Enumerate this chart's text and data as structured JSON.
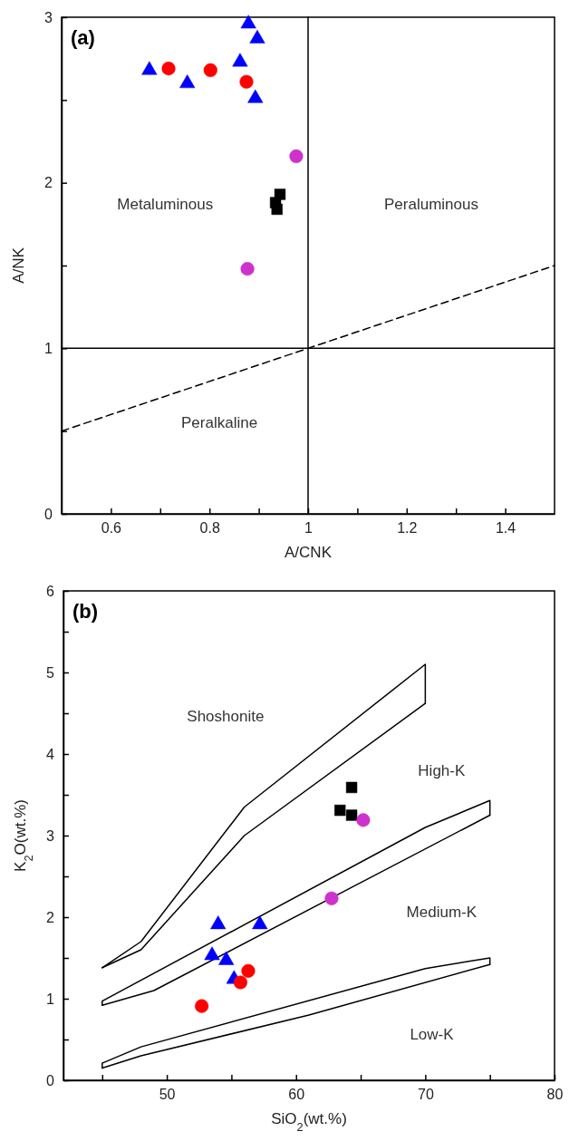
{
  "chart_data": [
    {
      "type": "scatter",
      "title": "(a)",
      "xlabel": "A/CNK",
      "ylabel": "A/NK",
      "xlim": [
        0.5,
        1.5
      ],
      "ylim": [
        0,
        3
      ],
      "xticks": [
        0.6,
        {
          "value": 0.7,
          "label": null
        },
        0.8,
        {
          "value": 0.9,
          "label": null
        },
        1,
        {
          "value": 1.1,
          "label": null
        },
        1.2,
        {
          "value": 1.3,
          "label": null
        },
        1.4
      ],
      "yticks": [
        0,
        {
          "value": 0.5,
          "label": null
        },
        1,
        {
          "value": 1.5,
          "label": null
        },
        2,
        {
          "value": 2.5,
          "label": null
        },
        3
      ],
      "series": [
        {
          "type": "line",
          "color": "#000000",
          "line_style": "solid",
          "marker": "none",
          "x": [
            1,
            1
          ],
          "values": [
            0,
            3
          ]
        },
        {
          "type": "line",
          "color": "#000000",
          "line_style": "solid",
          "marker": "none",
          "x": [
            0.5,
            1.5
          ],
          "values": [
            1,
            1
          ]
        },
        {
          "type": "line",
          "color": "#000000",
          "line_style": "dashed",
          "marker": "none",
          "x": [
            0.5,
            1.5
          ],
          "values": [
            0.5,
            1.5
          ]
        },
        {
          "color": "#0000ff",
          "marker": "triangle",
          "x": [
            0.678,
            0.755,
            0.862,
            0.879,
            0.897,
            0.893
          ],
          "values": [
            2.68,
            2.6,
            2.73,
            2.96,
            2.87,
            2.51
          ]
        },
        {
          "color": "#ff0000",
          "marker": "circle",
          "x": [
            0.717,
            0.802,
            0.875
          ],
          "values": [
            2.69,
            2.68,
            2.61
          ]
        },
        {
          "color": "#cc33cc",
          "marker": "circle",
          "x": [
            0.976,
            0.877
          ],
          "values": [
            2.16,
            1.48
          ]
        },
        {
          "color": "#000000",
          "marker": "square",
          "x": [
            0.943,
            0.934,
            0.937
          ],
          "values": [
            1.93,
            1.88,
            1.84
          ]
        }
      ],
      "annotations": [
        "Metaluminous",
        "Peraluminous",
        "Peralkaline"
      ]
    },
    {
      "type": "scatter",
      "title": "(b)",
      "xlabel": "SiO$_{2}$(wt.%)",
      "ylabel": "K$_{2}$O(wt.%)",
      "xlim": [
        42,
        80
      ],
      "ylim": [
        0,
        6
      ],
      "xticks": [
        {
          "value": 45,
          "label": null
        },
        50,
        {
          "value": 55,
          "label": null
        },
        60,
        {
          "value": 65,
          "label": null
        },
        70,
        {
          "value": 75,
          "label": null
        },
        80
      ],
      "yticks": [
        0,
        {
          "value": 0.5,
          "label": null
        },
        1,
        {
          "value": 1.5,
          "label": null
        },
        2,
        {
          "value": 2.5,
          "label": null
        },
        3,
        {
          "value": 3.5,
          "label": null
        },
        4,
        {
          "value": 4.5,
          "label": null
        },
        5,
        {
          "value": 5.5,
          "label": null
        },
        6
      ],
      "series": [
        {
          "type": "line",
          "color": "#000000",
          "line_style": "solid",
          "marker": "none",
          "x": [
            45,
            48,
            56,
            70,
            70
          ],
          "values": [
            1.38,
            1.7,
            3.35,
            5.1,
            4.62
          ]
        },
        {
          "type": "line",
          "color": "#000000",
          "line_style": "solid",
          "marker": "none",
          "x": [
            45,
            48,
            56,
            70
          ],
          "values": [
            1.38,
            1.6,
            3.0,
            4.62
          ]
        },
        {
          "type": "line",
          "color": "#000000",
          "line_style": "solid",
          "marker": "none",
          "x": [
            45,
            45,
            70,
            75,
            75
          ],
          "values": [
            0.92,
            0.97,
            3.1,
            3.43,
            3.25
          ]
        },
        {
          "type": "line",
          "color": "#000000",
          "line_style": "solid",
          "marker": "none",
          "x": [
            45,
            49,
            75
          ],
          "values": [
            0.92,
            1.1,
            3.25
          ]
        },
        {
          "type": "line",
          "color": "#000000",
          "line_style": "solid",
          "marker": "none",
          "x": [
            45,
            45,
            48,
            70,
            75,
            75
          ],
          "values": [
            0.15,
            0.21,
            0.41,
            1.37,
            1.5,
            1.42
          ]
        },
        {
          "type": "line",
          "color": "#000000",
          "line_style": "solid",
          "marker": "none",
          "x": [
            45,
            48,
            61,
            75
          ],
          "values": [
            0.15,
            0.3,
            0.8,
            1.42
          ]
        },
        {
          "color": "#0000ff",
          "marker": "triangle",
          "x": [
            53.97,
            57.2,
            53.5,
            54.6,
            55.2
          ],
          "values": [
            1.91,
            1.91,
            1.53,
            1.47,
            1.24
          ]
        },
        {
          "color": "#ff0000",
          "marker": "circle",
          "x": [
            56.3,
            55.7,
            52.7
          ],
          "values": [
            1.34,
            1.2,
            0.91
          ]
        },
        {
          "color": "#000000",
          "marker": "square",
          "x": [
            64.3,
            63.4,
            64.3
          ],
          "values": [
            3.59,
            3.31,
            3.25
          ]
        },
        {
          "color": "#cc33cc",
          "marker": "circle",
          "x": [
            65.2,
            62.75
          ],
          "values": [
            3.19,
            2.23
          ]
        }
      ],
      "annotations": [
        "Shoshonite",
        "High-K",
        "Medium-K",
        "Low-K"
      ]
    }
  ]
}
